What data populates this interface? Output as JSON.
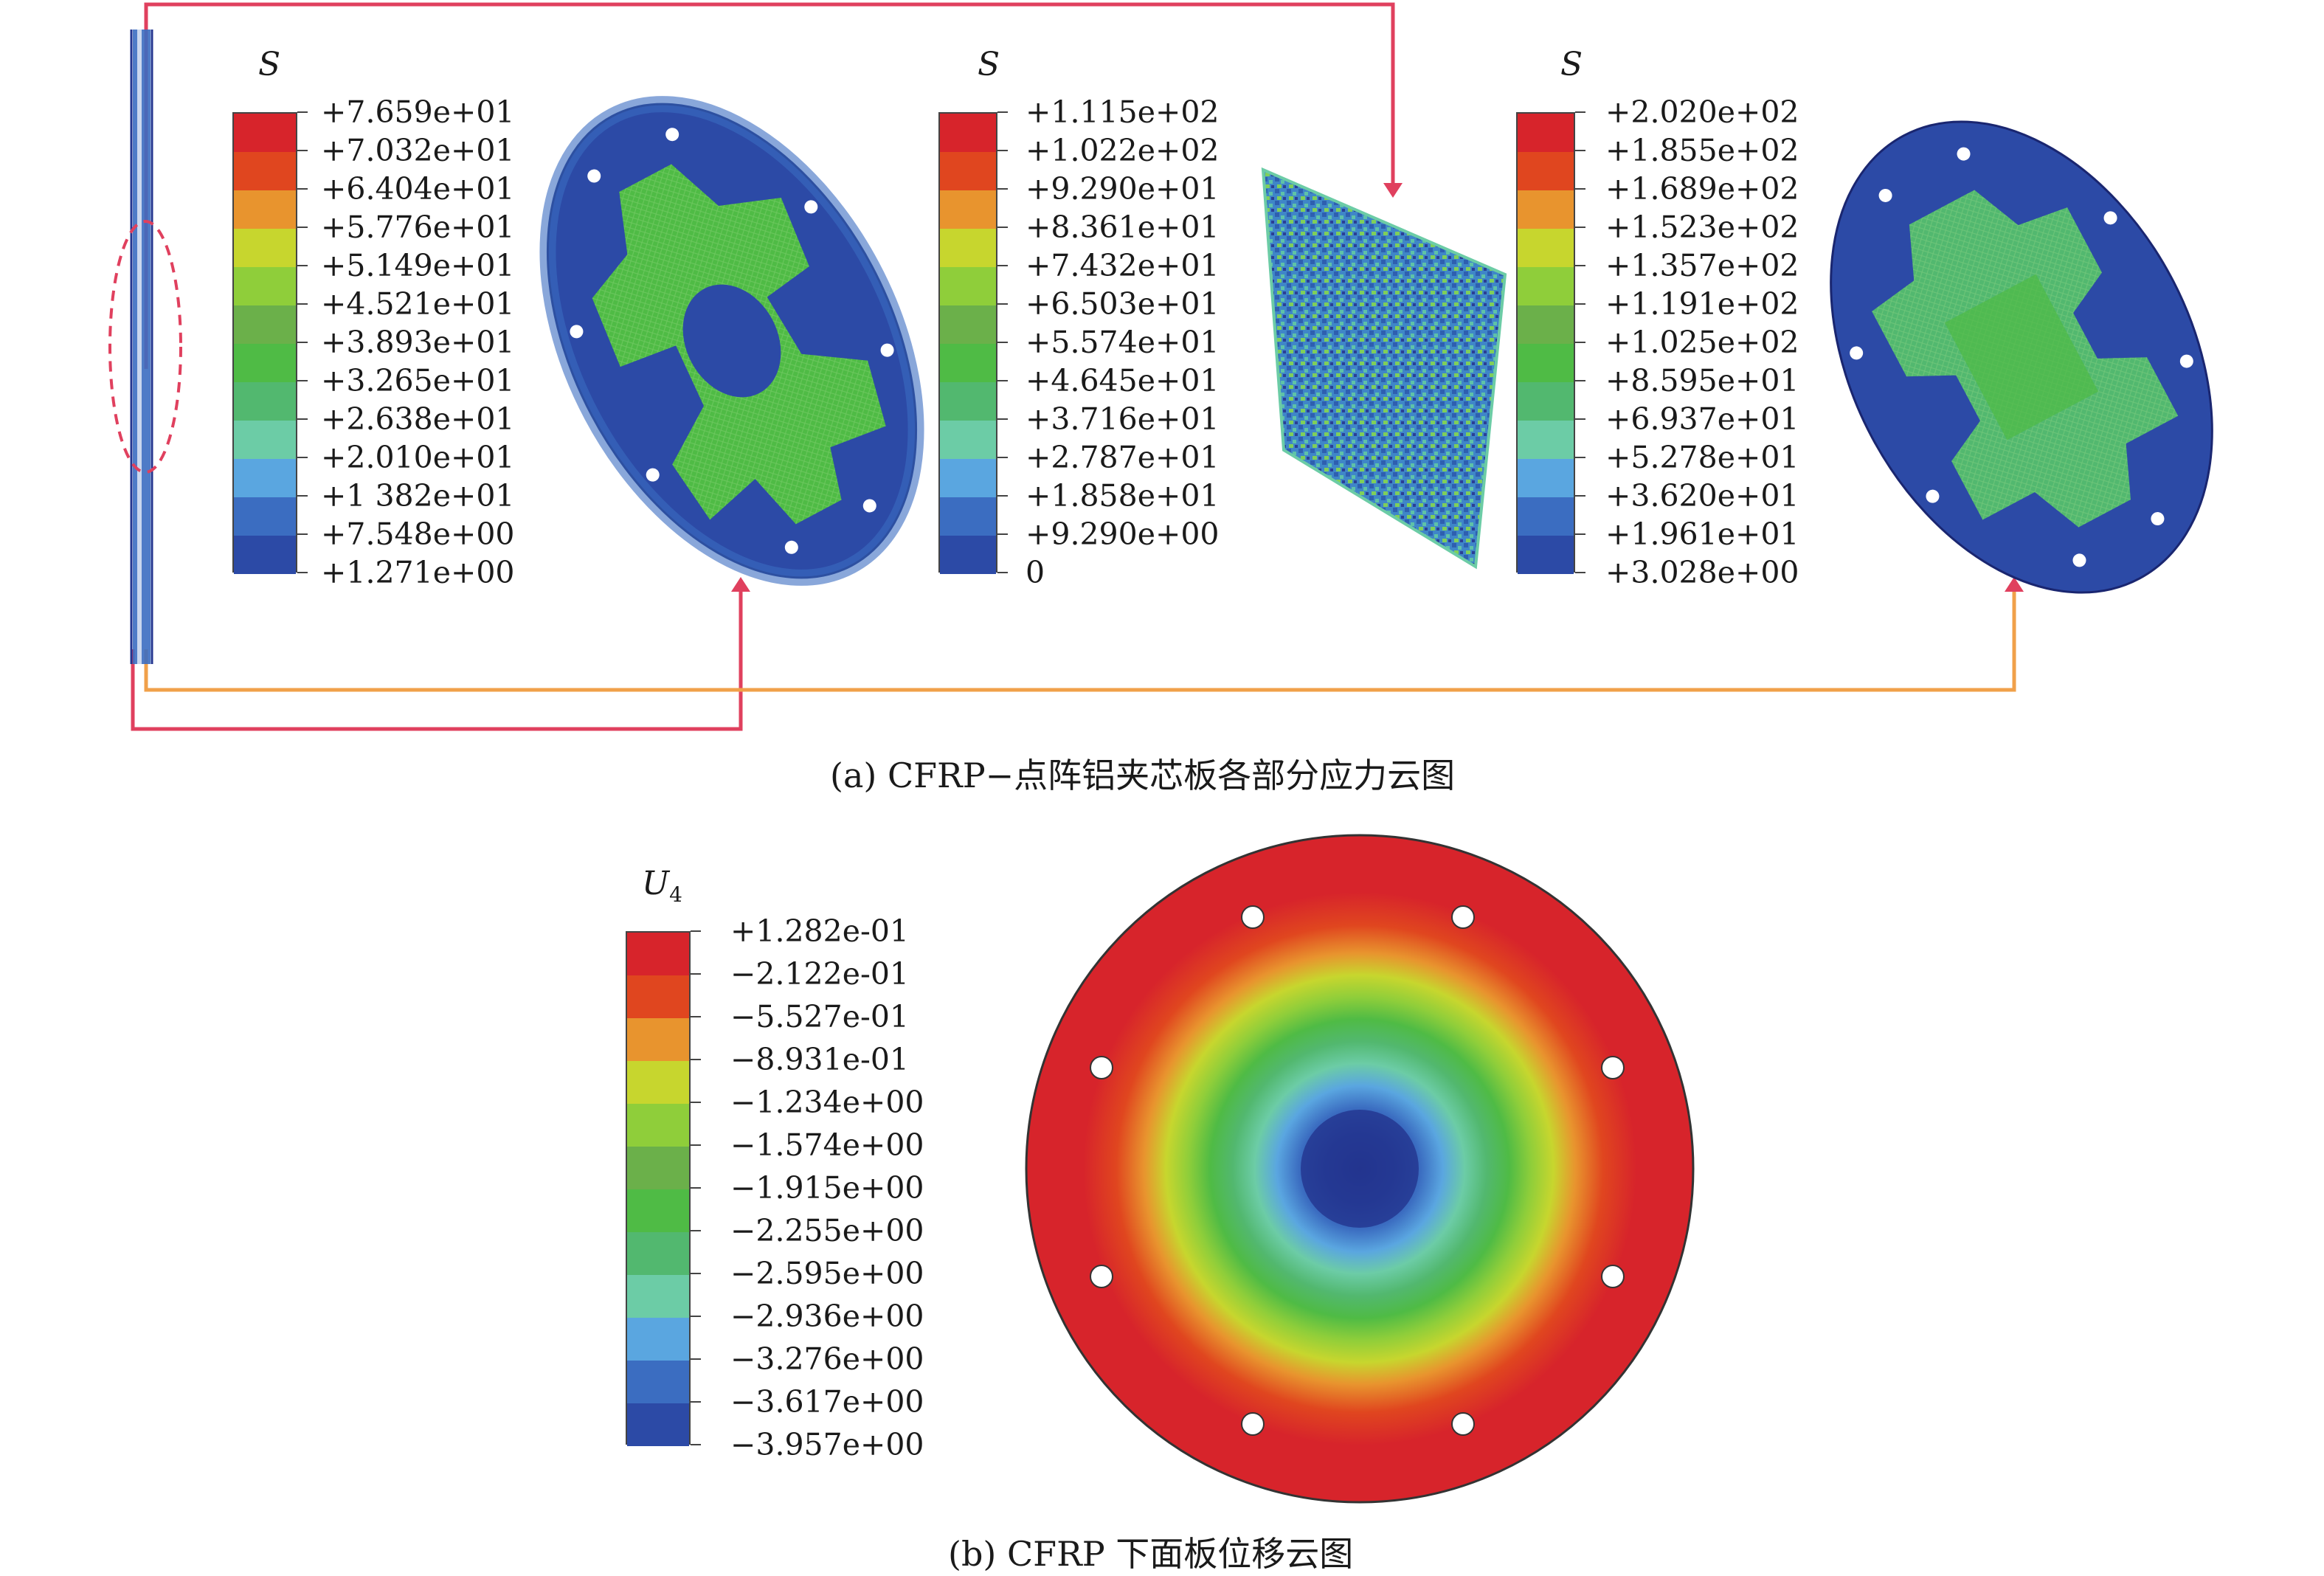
{
  "panel_a": {
    "caption": "(a) CFRP−点阵铝夹芯板各部分应力云图",
    "legends": [
      {
        "title": "S",
        "labels": [
          "+7.659e+01",
          "+7.032e+01",
          "+6.404e+01",
          "+5.776e+01",
          "+5.149e+01",
          "+4.521e+01",
          "+3.893e+01",
          "+3.265e+01",
          "+2.638e+01",
          "+2.010e+01",
          "+1 382e+01",
          "+7.548e+00",
          "+1.271e+00"
        ]
      },
      {
        "title": "S",
        "labels": [
          "+1.115e+02",
          "+1.022e+02",
          "+9.290e+01",
          "+8.361e+01",
          "+7.432e+01",
          "+6.503e+01",
          "+5.574e+01",
          "+4.645e+01",
          "+3.716e+01",
          "+2.787e+01",
          "+1.858e+01",
          "+9.290e+00",
          "0"
        ]
      },
      {
        "title": "S",
        "labels": [
          "+2.020e+02",
          "+1.855e+02",
          "+1.689e+02",
          "+1.523e+02",
          "+1.357e+02",
          "+1.191e+02",
          "+1.025e+02",
          "+8.595e+01",
          "+6.937e+01",
          "+5.278e+01",
          "+3.620e+01",
          "+1.961e+01",
          "+3.028e+00"
        ]
      }
    ]
  },
  "panel_b": {
    "caption": "(b) CFRP 下面板位移云图",
    "legend": {
      "title": "U",
      "title_sub": "4",
      "labels": [
        "+1.282e-01",
        "−2.122e-01",
        "−5.527e-01",
        "−8.931e-01",
        "−1.234e+00",
        "−1.574e+00",
        "−1.915e+00",
        "−2.255e+00",
        "−2.595e+00",
        "−2.936e+00",
        "−3.276e+00",
        "−3.617e+00",
        "−3.957e+00"
      ]
    }
  },
  "colors": {
    "scale": [
      "#d7242b",
      "#e0461f",
      "#e8942e",
      "#c7d62e",
      "#8fce3a",
      "#6bb04a",
      "#4fbb45",
      "#52b86f",
      "#6ccca6",
      "#5aa6e0",
      "#3b6dc1",
      "#2c4aa6",
      "#23358f"
    ],
    "arrow_red": "#e0405e",
    "arrow_orange": "#f0a04a"
  }
}
